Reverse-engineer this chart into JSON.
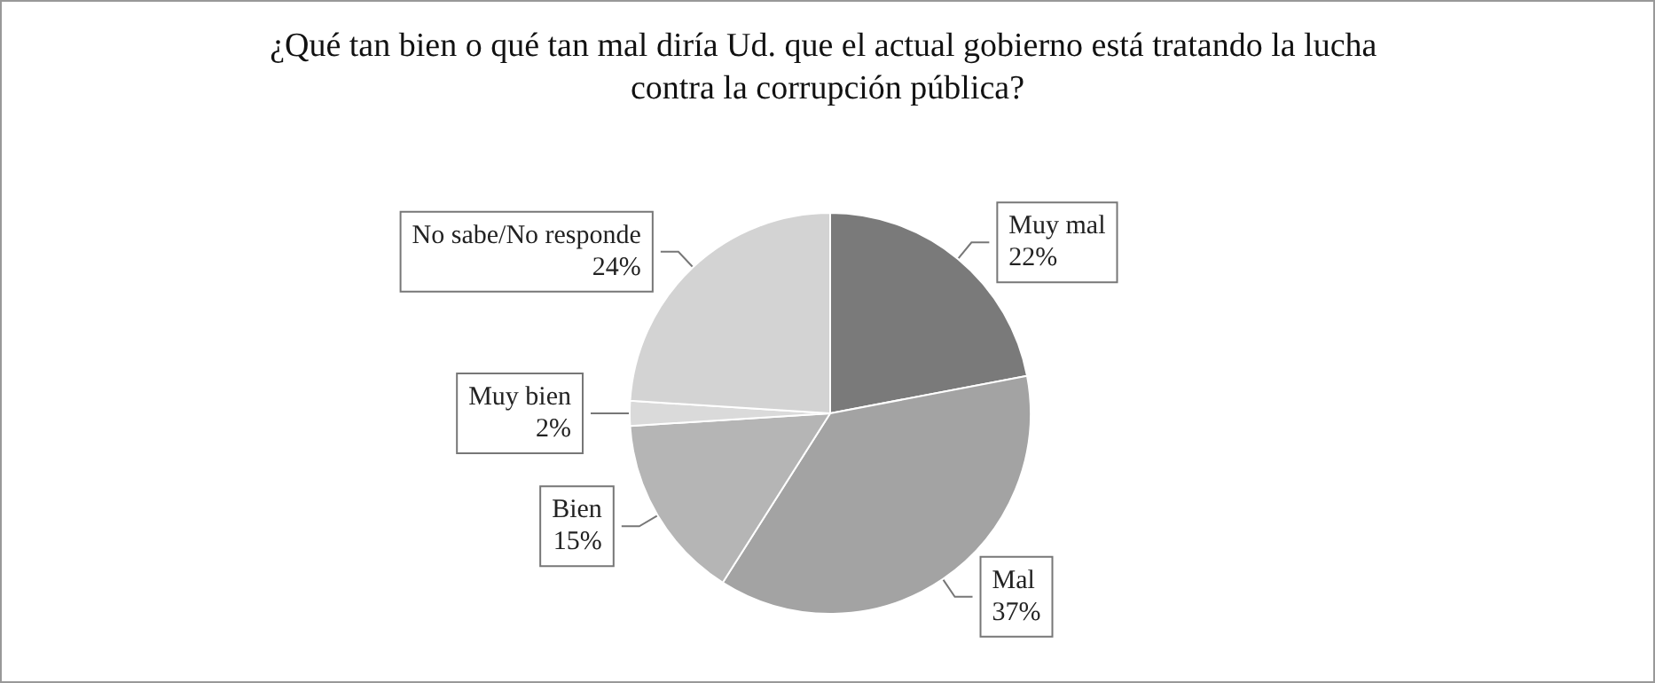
{
  "chart_data": {
    "type": "pie",
    "title": "¿Qué tan bien o qué tan mal diría Ud. que el actual gobierno está tratando la lucha contra la corrupción pública?",
    "categories": [
      "Muy mal",
      "Mal",
      "Bien",
      "Muy bien",
      "No sabe/No responde"
    ],
    "values": [
      22,
      37,
      15,
      2,
      24
    ],
    "value_labels": [
      "22%",
      "37%",
      "15%",
      "2%",
      "24%"
    ],
    "colors": [
      "#7a7a7a",
      "#a3a3a3",
      "#b5b5b5",
      "#dadada",
      "#d3d3d3"
    ]
  }
}
